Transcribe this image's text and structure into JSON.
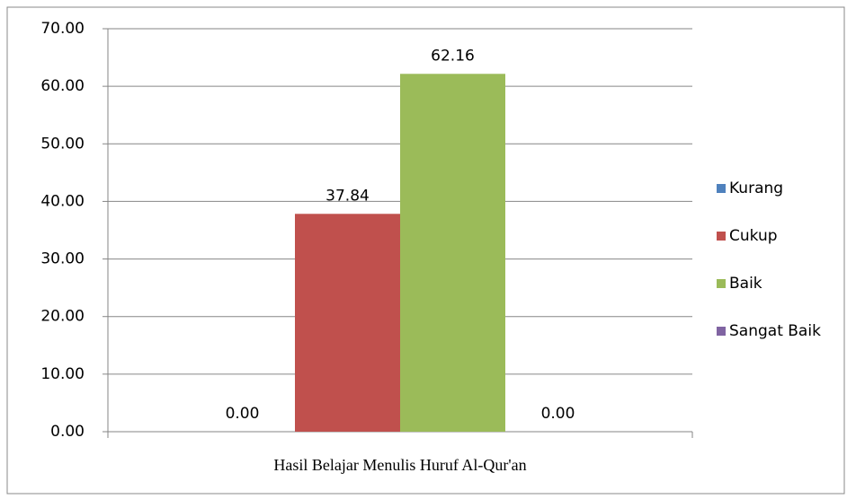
{
  "chart_data": {
    "type": "bar",
    "categories": [
      "Hasil Belajar Menulis Huruf Al-Qur'an"
    ],
    "series": [
      {
        "name": "Kurang",
        "color": "#4f81bd",
        "values": [
          0
        ],
        "value_labels": [
          "0.00"
        ]
      },
      {
        "name": "Cukup",
        "color": "#c0504d",
        "values": [
          37.84
        ],
        "value_labels": [
          "37.84"
        ]
      },
      {
        "name": "Baik",
        "color": "#9bbb59",
        "values": [
          62.16
        ],
        "value_labels": [
          "62.16"
        ]
      },
      {
        "name": "Sangat Baik",
        "color": "#8064a2",
        "values": [
          0
        ],
        "value_labels": [
          "0.00"
        ]
      }
    ],
    "ylim": [
      0,
      70
    ],
    "yticks": [
      {
        "value": 0,
        "label": "0.00"
      },
      {
        "value": 10,
        "label": "10.00"
      },
      {
        "value": 20,
        "label": "20.00"
      },
      {
        "value": 30,
        "label": "30.00"
      },
      {
        "value": 40,
        "label": "40.00"
      },
      {
        "value": 50,
        "label": "50.00"
      },
      {
        "value": 60,
        "label": "60.00"
      },
      {
        "value": 70,
        "label": "70.00"
      }
    ],
    "grid": true,
    "legend": "right"
  }
}
